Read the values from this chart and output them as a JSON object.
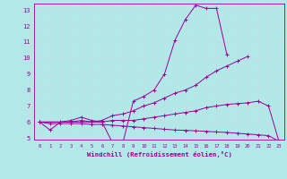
{
  "xlabel": "Windchill (Refroidissement éolien,°C)",
  "bg_color": "#b2e8e8",
  "line_color": "#990099",
  "grid_color": "#c8e8e8",
  "xmin": 0,
  "xmax": 23,
  "ymin": 5,
  "ymax": 13,
  "series": [
    {
      "x": [
        0,
        1,
        2,
        3,
        4,
        5,
        6,
        7,
        8,
        9,
        10,
        11,
        12,
        13,
        14,
        15,
        16,
        17,
        18
      ],
      "y": [
        6.0,
        5.5,
        6.0,
        6.1,
        6.3,
        6.1,
        6.0,
        4.7,
        4.7,
        7.3,
        7.6,
        8.0,
        9.0,
        11.1,
        12.4,
        13.3,
        13.1,
        13.1,
        10.2
      ]
    },
    {
      "x": [
        0,
        3,
        4,
        5,
        6,
        7,
        8,
        9,
        10,
        11,
        12,
        13,
        14,
        15,
        16,
        17,
        18,
        19,
        20
      ],
      "y": [
        6.0,
        6.0,
        6.1,
        6.0,
        6.1,
        6.4,
        6.5,
        6.7,
        7.0,
        7.2,
        7.5,
        7.8,
        8.0,
        8.3,
        8.8,
        9.2,
        9.5,
        9.8,
        10.1
      ]
    },
    {
      "x": [
        0,
        3,
        4,
        5,
        6,
        7,
        8,
        9,
        10,
        11,
        12,
        13,
        14,
        15,
        16,
        17,
        18,
        19,
        20,
        21,
        22,
        23
      ],
      "y": [
        6.0,
        6.0,
        6.0,
        6.0,
        6.0,
        6.1,
        6.1,
        6.1,
        6.2,
        6.3,
        6.4,
        6.5,
        6.6,
        6.7,
        6.9,
        7.0,
        7.1,
        7.15,
        7.2,
        7.3,
        7.0,
        4.8
      ]
    },
    {
      "x": [
        0,
        1,
        2,
        3,
        4,
        5,
        6,
        7,
        8,
        9,
        10,
        11,
        12,
        13,
        14,
        15,
        16,
        17,
        18,
        19,
        20,
        21,
        22,
        23
      ],
      "y": [
        6.0,
        5.9,
        5.9,
        5.9,
        5.9,
        5.85,
        5.85,
        5.8,
        5.75,
        5.7,
        5.65,
        5.6,
        5.55,
        5.5,
        5.48,
        5.45,
        5.42,
        5.38,
        5.35,
        5.3,
        5.25,
        5.2,
        5.15,
        4.8
      ]
    }
  ]
}
